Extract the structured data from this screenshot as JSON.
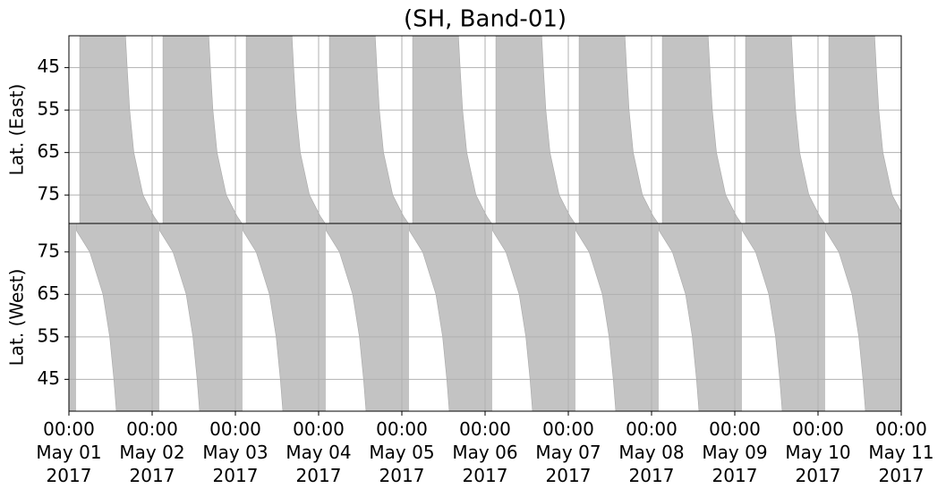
{
  "chart_data": [
    {
      "type": "area",
      "title": "(SH, Band-01)",
      "ylabel": "Lat. (East)",
      "color": "#c3c3c3",
      "grid": true,
      "invert_y": true,
      "xlim": [
        "2017-05-01T00:00",
        "2017-05-11T00:00"
      ],
      "ylim": [
        37.5,
        81.7
      ],
      "yticks": [
        45,
        55,
        65,
        75
      ],
      "x": [
        "2017-05-01T03:07",
        "2017-05-01T16:19",
        "2017-05-01T16:48",
        "2017-05-01T17:31",
        "2017-05-01T18:43",
        "2017-05-01T21:22",
        "2017-05-02T00:29",
        "2017-05-02T01:55",
        null,
        "2017-05-02T03:07",
        "2017-05-02T16:19",
        "2017-05-02T16:48",
        "2017-05-02T17:31",
        "2017-05-02T18:43",
        "2017-05-02T21:22",
        "2017-05-03T00:29",
        "2017-05-03T01:55",
        null,
        "2017-05-03T03:07",
        "2017-05-03T16:19",
        "2017-05-03T16:48",
        "2017-05-03T17:31",
        "2017-05-03T18:43",
        "2017-05-03T21:22",
        "2017-05-04T00:29",
        "2017-05-04T01:55",
        null,
        "2017-05-04T03:07",
        "2017-05-04T16:19",
        "2017-05-04T16:48",
        "2017-05-04T17:31",
        "2017-05-04T18:43",
        "2017-05-04T21:22",
        "2017-05-05T00:29",
        "2017-05-05T01:55",
        null,
        "2017-05-05T03:07",
        "2017-05-05T16:19",
        "2017-05-05T16:48",
        "2017-05-05T17:31",
        "2017-05-05T18:43",
        "2017-05-05T21:22",
        "2017-05-06T00:29",
        "2017-05-06T01:55",
        null,
        "2017-05-06T03:07",
        "2017-05-06T16:19",
        "2017-05-06T16:48",
        "2017-05-06T17:31",
        "2017-05-06T18:43",
        "2017-05-06T21:22",
        "2017-05-07T00:29",
        "2017-05-07T01:55",
        null,
        "2017-05-07T03:07",
        "2017-05-07T16:19",
        "2017-05-07T16:48",
        "2017-05-07T17:31",
        "2017-05-07T18:43",
        "2017-05-07T21:22",
        "2017-05-08T00:29",
        "2017-05-08T01:55",
        null,
        "2017-05-08T03:07",
        "2017-05-08T16:19",
        "2017-05-08T16:48",
        "2017-05-08T17:31",
        "2017-05-08T18:43",
        "2017-05-08T21:22",
        "2017-05-09T00:29",
        "2017-05-09T01:55",
        null,
        "2017-05-09T03:07",
        "2017-05-09T16:19",
        "2017-05-09T16:48",
        "2017-05-09T17:31",
        "2017-05-09T18:43",
        "2017-05-09T21:22",
        "2017-05-10T00:29",
        "2017-05-10T01:55",
        null,
        "2017-05-10T03:07",
        "2017-05-10T16:19",
        "2017-05-10T16:48",
        "2017-05-10T17:31",
        "2017-05-10T18:43",
        "2017-05-10T21:22",
        "2017-05-11T00:00"
      ],
      "values": [
        37.5,
        37.5,
        45,
        55,
        65,
        75,
        80,
        81.7,
        null,
        37.5,
        37.5,
        45,
        55,
        65,
        75,
        80,
        81.7,
        null,
        37.5,
        37.5,
        45,
        55,
        65,
        75,
        80,
        81.7,
        null,
        37.5,
        37.5,
        45,
        55,
        65,
        75,
        80,
        81.7,
        null,
        37.5,
        37.5,
        45,
        55,
        65,
        75,
        80,
        81.7,
        null,
        37.5,
        37.5,
        45,
        55,
        65,
        75,
        80,
        81.7,
        null,
        37.5,
        37.5,
        45,
        55,
        65,
        75,
        80,
        81.7,
        null,
        37.5,
        37.5,
        45,
        55,
        65,
        75,
        80,
        81.7,
        null,
        37.5,
        37.5,
        45,
        55,
        65,
        75,
        80,
        81.7,
        null,
        37.5,
        37.5,
        45,
        55,
        65,
        75,
        79
      ]
    },
    {
      "type": "area",
      "ylabel": "Lat. (West)",
      "color": "#c3c3c3",
      "grid": true,
      "xlim": [
        "2017-05-01T00:00",
        "2017-05-11T00:00"
      ],
      "ylim": [
        37.5,
        81.7
      ],
      "yticks": [
        45,
        55,
        65,
        75
      ],
      "xticks": [
        {
          "value": "2017-05-01T00:00",
          "label": "00:00\nMay 01\n2017"
        },
        {
          "value": "2017-05-02T00:00",
          "label": "00:00\nMay 02\n2017"
        },
        {
          "value": "2017-05-03T00:00",
          "label": "00:00\nMay 03\n2017"
        },
        {
          "value": "2017-05-04T00:00",
          "label": "00:00\nMay 04\n2017"
        },
        {
          "value": "2017-05-05T00:00",
          "label": "00:00\nMay 05\n2017"
        },
        {
          "value": "2017-05-06T00:00",
          "label": "00:00\nMay 06\n2017"
        },
        {
          "value": "2017-05-07T00:00",
          "label": "00:00\nMay 07\n2017"
        },
        {
          "value": "2017-05-08T00:00",
          "label": "00:00\nMay 08\n2017"
        },
        {
          "value": "2017-05-09T00:00",
          "label": "00:00\nMay 09\n2017"
        },
        {
          "value": "2017-05-10T00:00",
          "label": "00:00\nMay 10\n2017"
        },
        {
          "value": "2017-05-11T00:00",
          "label": "00:00\nMay 11\n2017"
        }
      ],
      "x": [
        "2017-05-01T00:00",
        "2017-05-01T01:55",
        null,
        "2017-05-01T02:10",
        "2017-05-01T06:00",
        "2017-05-01T09:50",
        "2017-05-01T11:46",
        "2017-05-01T12:58",
        "2017-05-01T13:41",
        "2017-05-02T01:55",
        null,
        "2017-05-02T02:10",
        "2017-05-02T06:00",
        "2017-05-02T09:50",
        "2017-05-02T11:46",
        "2017-05-02T12:58",
        "2017-05-02T13:41",
        "2017-05-03T01:55",
        null,
        "2017-05-03T02:10",
        "2017-05-03T06:00",
        "2017-05-03T09:50",
        "2017-05-03T11:46",
        "2017-05-03T12:58",
        "2017-05-03T13:41",
        "2017-05-04T01:55",
        null,
        "2017-05-04T02:10",
        "2017-05-04T06:00",
        "2017-05-04T09:50",
        "2017-05-04T11:46",
        "2017-05-04T12:58",
        "2017-05-04T13:41",
        "2017-05-05T01:55",
        null,
        "2017-05-05T02:10",
        "2017-05-05T06:00",
        "2017-05-05T09:50",
        "2017-05-05T11:46",
        "2017-05-05T12:58",
        "2017-05-05T13:41",
        "2017-05-06T01:55",
        null,
        "2017-05-06T02:10",
        "2017-05-06T06:00",
        "2017-05-06T09:50",
        "2017-05-06T11:46",
        "2017-05-06T12:58",
        "2017-05-06T13:41",
        "2017-05-07T01:55",
        null,
        "2017-05-07T02:10",
        "2017-05-07T06:00",
        "2017-05-07T09:50",
        "2017-05-07T11:46",
        "2017-05-07T12:58",
        "2017-05-07T13:41",
        "2017-05-08T01:55",
        null,
        "2017-05-08T02:10",
        "2017-05-08T06:00",
        "2017-05-08T09:50",
        "2017-05-08T11:46",
        "2017-05-08T12:58",
        "2017-05-08T13:41",
        "2017-05-09T01:55",
        null,
        "2017-05-09T02:10",
        "2017-05-09T06:00",
        "2017-05-09T09:50",
        "2017-05-09T11:46",
        "2017-05-09T12:58",
        "2017-05-09T13:41",
        "2017-05-10T01:55",
        null,
        "2017-05-10T02:10",
        "2017-05-10T06:00",
        "2017-05-10T09:50",
        "2017-05-10T11:46",
        "2017-05-10T12:58",
        "2017-05-10T13:41",
        "2017-05-11T00:00"
      ],
      "values": [
        37.5,
        37.5,
        null,
        80,
        75,
        65,
        55,
        45,
        37.5,
        37.5,
        null,
        80,
        75,
        65,
        55,
        45,
        37.5,
        37.5,
        null,
        80,
        75,
        65,
        55,
        45,
        37.5,
        37.5,
        null,
        80,
        75,
        65,
        55,
        45,
        37.5,
        37.5,
        null,
        80,
        75,
        65,
        55,
        45,
        37.5,
        37.5,
        null,
        80,
        75,
        65,
        55,
        45,
        37.5,
        37.5,
        null,
        80,
        75,
        65,
        55,
        45,
        37.5,
        37.5,
        null,
        80,
        75,
        65,
        55,
        45,
        37.5,
        37.5,
        null,
        80,
        75,
        65,
        55,
        45,
        37.5,
        37.5,
        null,
        80,
        75,
        65,
        55,
        45,
        37.5,
        37.5
      ]
    }
  ]
}
